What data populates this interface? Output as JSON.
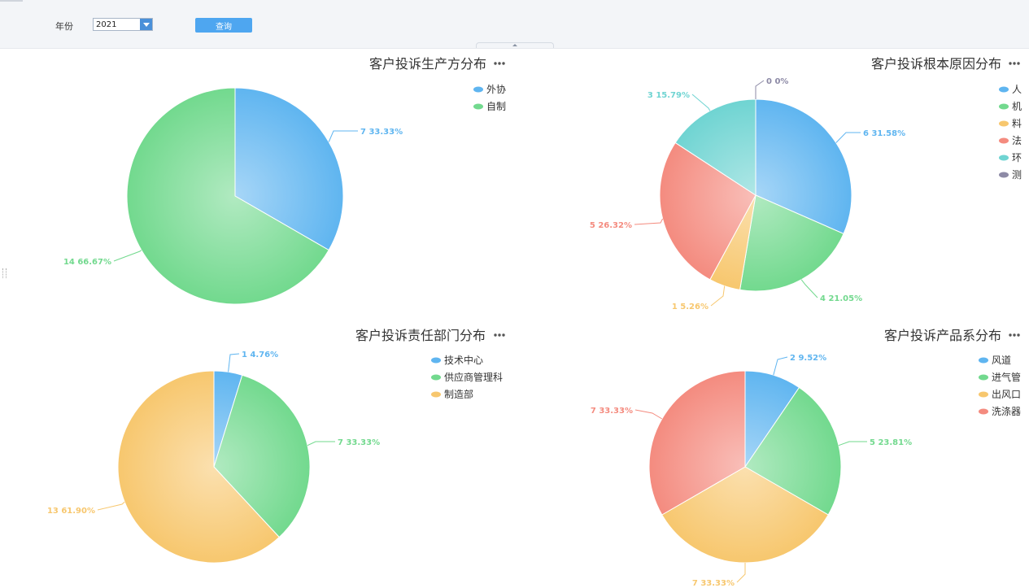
{
  "filter": {
    "year_label": "年份",
    "year_value": "2021",
    "query_label": "查询"
  },
  "chart_data": [
    {
      "type": "pie",
      "title": "客户投诉生产方分布",
      "categories": [
        "外协",
        "自制"
      ],
      "values": [
        7,
        14
      ],
      "labels": [
        "7  33.33%",
        "14  66.67%"
      ],
      "colors": [
        "#5fb5f0",
        "#72d98e"
      ],
      "legend_position": "top-right"
    },
    {
      "type": "pie",
      "title": "客户投诉根本原因分布",
      "categories": [
        "人",
        "机",
        "料",
        "法",
        "环",
        "测"
      ],
      "values": [
        6,
        4,
        1,
        5,
        3,
        0
      ],
      "labels": [
        "6  31.58%",
        "4  21.05%",
        "1  5.26%",
        "5  26.32%",
        "3  15.79%",
        "0  0%"
      ],
      "colors": [
        "#5fb5f0",
        "#72d98e",
        "#f7c76e",
        "#f48b7f",
        "#6fd4d2",
        "#8d8aa6"
      ],
      "legend_position": "top-right"
    },
    {
      "type": "pie",
      "title": "客户投诉责任部门分布",
      "categories": [
        "技术中心",
        "供应商管理科",
        "制造部"
      ],
      "values": [
        1,
        7,
        13
      ],
      "labels": [
        "1  4.76%",
        "7  33.33%",
        "13  61.90%"
      ],
      "colors": [
        "#5fb5f0",
        "#72d98e",
        "#f7c76e"
      ],
      "legend_position": "top-right"
    },
    {
      "type": "pie",
      "title": "客户投诉产品系分布",
      "categories": [
        "风道",
        "进气管",
        "出风口",
        "洗涤器"
      ],
      "values": [
        2,
        5,
        7,
        7
      ],
      "labels": [
        "2  9.52%",
        "5  23.81%",
        "7  33.33%",
        "7  33.33%"
      ],
      "colors": [
        "#5fb5f0",
        "#72d98e",
        "#f7c76e",
        "#f48b7f"
      ],
      "legend_position": "top-right"
    }
  ],
  "icons": {
    "more": "more-dots-icon",
    "dropdown": "chevron-down-icon"
  }
}
